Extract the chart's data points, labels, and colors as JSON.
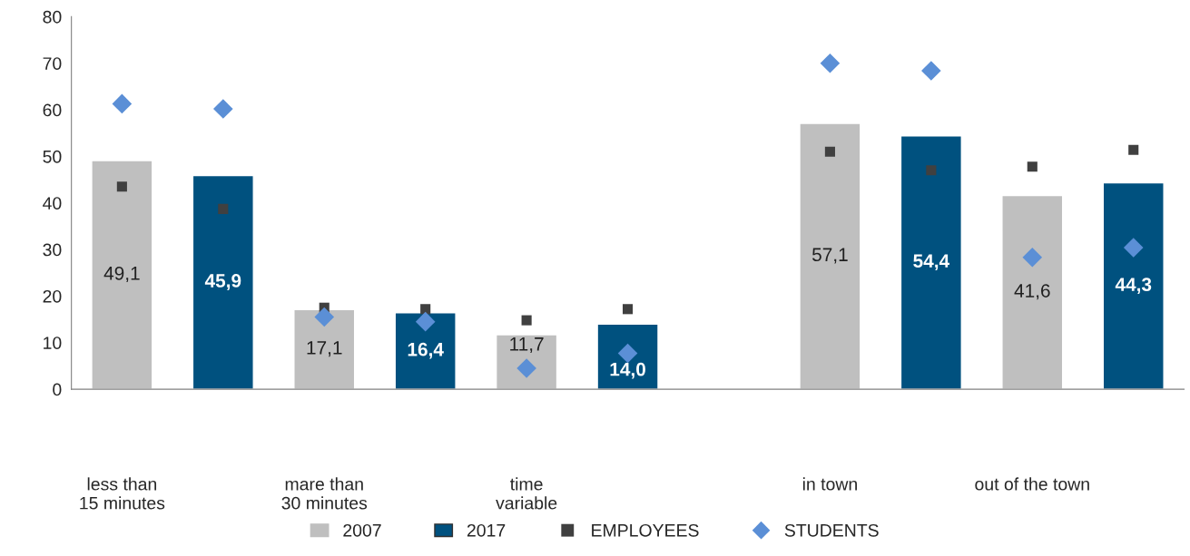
{
  "chart_data": {
    "type": "bar",
    "categories": [
      "less than\n15 minutes",
      null,
      "mare than\n30 minutes",
      null,
      "time\nvariable",
      null,
      null,
      "in town",
      null,
      "out of the town",
      null
    ],
    "series": [
      {
        "name": "2007",
        "color": "#bfbfbf",
        "values": [
          49.1,
          null,
          17.1,
          null,
          11.7,
          null,
          null,
          57.1,
          null,
          41.6,
          null
        ],
        "value_labels": [
          "49,1",
          null,
          "17,1",
          null,
          "11,7",
          null,
          null,
          "57,1",
          null,
          "41,6",
          null
        ]
      },
      {
        "name": "2017",
        "color": "#00517f",
        "values": [
          null,
          45.9,
          null,
          16.4,
          null,
          14.0,
          null,
          null,
          54.4,
          null,
          44.3
        ],
        "value_labels": [
          null,
          "45,9",
          null,
          "16,4",
          null,
          "14,0",
          null,
          null,
          "54,4",
          null,
          "44,3"
        ]
      },
      {
        "name": "EMPLOYEES",
        "type": "scatter",
        "marker": "square",
        "color": "#404040",
        "values": [
          43.5,
          38.7,
          17.5,
          17.2,
          14.8,
          17.2,
          null,
          51.0,
          47.0,
          47.8,
          51.4
        ]
      },
      {
        "name": "STUDENTS",
        "type": "scatter",
        "marker": "diamond",
        "color": "#5b8fd6",
        "values": [
          61.3,
          60.2,
          15.5,
          14.5,
          4.5,
          7.7,
          null,
          70.0,
          68.4,
          28.3,
          30.4
        ]
      }
    ],
    "ylim": [
      0,
      80
    ],
    "yticks": [
      0,
      10,
      20,
      30,
      40,
      50,
      60,
      70,
      80
    ],
    "grid": false,
    "legend": "bottom"
  }
}
